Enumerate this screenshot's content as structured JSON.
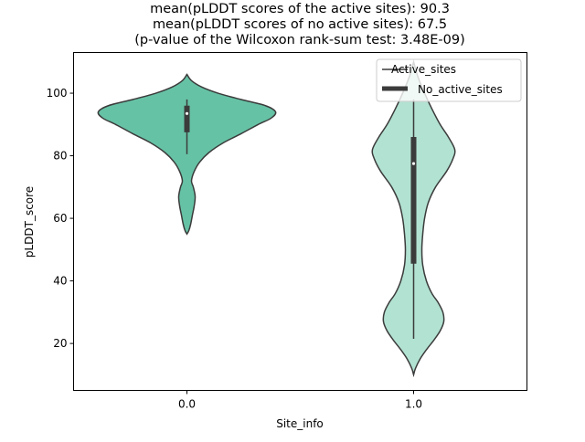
{
  "chart_data": {
    "type": "violin",
    "title_lines": [
      "mean(pLDDT scores of the active sites): 90.3",
      "mean(pLDDT scores of no active sites): 67.5",
      "(p-value of the Wilcoxon rank-sum test: 3.48E-09)"
    ],
    "xlabel": "Site_info",
    "ylabel": "pLDDT_score",
    "categories": [
      "0.0",
      "1.0"
    ],
    "ylim": [
      5,
      113
    ],
    "yticks": [
      20,
      40,
      60,
      80,
      100
    ],
    "legend": {
      "position": "top-right",
      "entries": [
        {
          "label": "Active_sites",
          "style": "thin-line"
        },
        {
          "label": "No_active_sites",
          "style": "thick-line"
        }
      ]
    },
    "series": [
      {
        "name": "0.0",
        "color": "#66c2a5",
        "box": {
          "q1": 87.5,
          "median": 93.5,
          "q3": 96,
          "whisker_low": 80.5,
          "whisker_high": 98
        },
        "density": [
          {
            "y": 55,
            "w": 0.0
          },
          {
            "y": 56,
            "w": 0.02
          },
          {
            "y": 58,
            "w": 0.04
          },
          {
            "y": 61,
            "w": 0.06
          },
          {
            "y": 64,
            "w": 0.08
          },
          {
            "y": 67,
            "w": 0.09
          },
          {
            "y": 70,
            "w": 0.07
          },
          {
            "y": 72,
            "w": 0.05
          },
          {
            "y": 75,
            "w": 0.08
          },
          {
            "y": 78,
            "w": 0.14
          },
          {
            "y": 81,
            "w": 0.24
          },
          {
            "y": 84,
            "w": 0.39
          },
          {
            "y": 87,
            "w": 0.59
          },
          {
            "y": 90,
            "w": 0.78
          },
          {
            "y": 92,
            "w": 0.92
          },
          {
            "y": 94,
            "w": 0.97
          },
          {
            "y": 96,
            "w": 0.86
          },
          {
            "y": 98,
            "w": 0.59
          },
          {
            "y": 100,
            "w": 0.34
          },
          {
            "y": 102,
            "w": 0.16
          },
          {
            "y": 104,
            "w": 0.05
          },
          {
            "y": 106,
            "w": 0.0
          }
        ]
      },
      {
        "name": "1.0",
        "color": "#b2e2d2",
        "box": {
          "q1": 45.5,
          "median": 77.5,
          "q3": 86,
          "whisker_low": 21.5,
          "whisker_high": 98
        },
        "density": [
          {
            "y": 10,
            "w": 0.0
          },
          {
            "y": 12,
            "w": 0.02
          },
          {
            "y": 15,
            "w": 0.07
          },
          {
            "y": 18,
            "w": 0.14
          },
          {
            "y": 21,
            "w": 0.22
          },
          {
            "y": 24,
            "w": 0.29
          },
          {
            "y": 27,
            "w": 0.33
          },
          {
            "y": 30,
            "w": 0.32
          },
          {
            "y": 33,
            "w": 0.27
          },
          {
            "y": 36,
            "w": 0.2
          },
          {
            "y": 40,
            "w": 0.14
          },
          {
            "y": 45,
            "w": 0.1
          },
          {
            "y": 50,
            "w": 0.09
          },
          {
            "y": 55,
            "w": 0.1
          },
          {
            "y": 60,
            "w": 0.12
          },
          {
            "y": 65,
            "w": 0.16
          },
          {
            "y": 70,
            "w": 0.24
          },
          {
            "y": 75,
            "w": 0.36
          },
          {
            "y": 79,
            "w": 0.43
          },
          {
            "y": 82,
            "w": 0.45
          },
          {
            "y": 86,
            "w": 0.38
          },
          {
            "y": 90,
            "w": 0.29
          },
          {
            "y": 95,
            "w": 0.2
          },
          {
            "y": 100,
            "w": 0.12
          },
          {
            "y": 105,
            "w": 0.05
          },
          {
            "y": 110,
            "w": 0.0
          }
        ]
      }
    ]
  }
}
